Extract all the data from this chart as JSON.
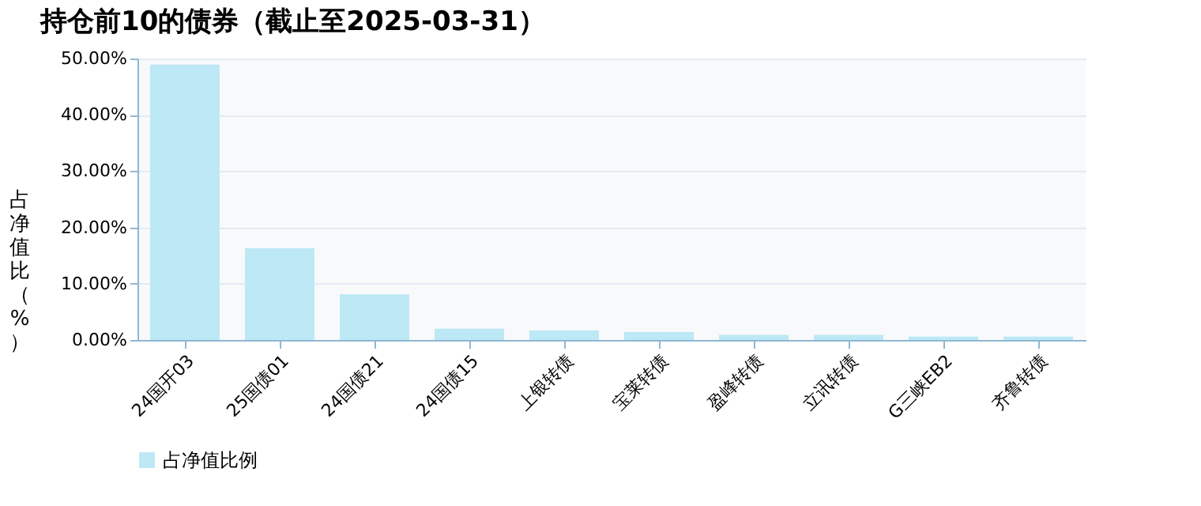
{
  "chart_data": {
    "type": "bar",
    "title": "持仓前10的债券（截止至2025-03-31）",
    "ylabel": "占净值比（%）",
    "categories": [
      "24国开03",
      "25国债01",
      "24国债21",
      "24国债15",
      "上银转债",
      "宝莱转债",
      "盈峰转债",
      "立讯转债",
      "G三峡EB2",
      "齐鲁转债"
    ],
    "series": [
      {
        "name": "占净值比例",
        "color": "#bde8f5",
        "values": [
          48.9,
          16.3,
          8.1,
          2.0,
          1.7,
          1.4,
          0.9,
          0.9,
          0.6,
          0.6
        ]
      }
    ],
    "ylim": [
      0,
      50
    ],
    "yticks": [
      {
        "value": 0,
        "label": "0.00%"
      },
      {
        "value": 10,
        "label": "10.00%"
      },
      {
        "value": 20,
        "label": "20.00%"
      },
      {
        "value": 30,
        "label": "30.00%"
      },
      {
        "value": 40,
        "label": "40.00%"
      },
      {
        "value": 50,
        "label": "50.00%"
      }
    ],
    "grid": "y",
    "legend": "bottom"
  }
}
